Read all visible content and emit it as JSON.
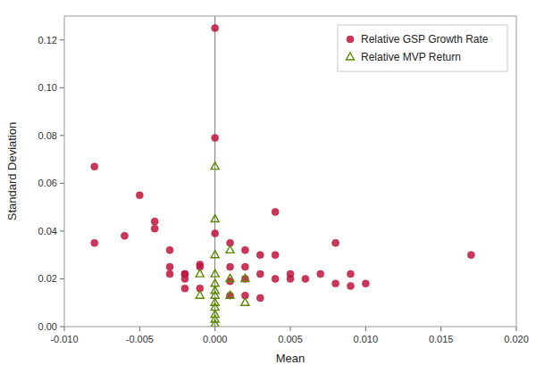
{
  "chart_data": {
    "type": "scatter",
    "xlabel": "Mean",
    "ylabel": "Standard Deviation",
    "series": [
      {
        "name": "Relative GSP Growth Rate",
        "color": "#C0143C",
        "marker": "circle",
        "x": [
          -0.008,
          -0.008,
          -0.006,
          -0.005,
          -0.004,
          -0.004,
          -0.003,
          -0.003,
          -0.003,
          -0.002,
          -0.002,
          -0.002,
          -0.002,
          -0.001,
          -0.001,
          -0.001,
          0.0,
          0.0,
          0.0,
          0.001,
          0.001,
          0.001,
          0.001,
          0.002,
          0.002,
          0.002,
          0.002,
          0.003,
          0.003,
          0.003,
          0.004,
          0.004,
          0.004,
          0.005,
          0.005,
          0.006,
          0.007,
          0.008,
          0.008,
          0.009,
          0.009,
          0.01,
          0.017
        ],
        "values": [
          0.067,
          0.035,
          0.038,
          0.055,
          0.041,
          0.044,
          0.032,
          0.025,
          0.022,
          0.022,
          0.022,
          0.02,
          0.016,
          0.026,
          0.025,
          0.016,
          0.125,
          0.079,
          0.039,
          0.035,
          0.025,
          0.019,
          0.013,
          0.032,
          0.025,
          0.02,
          0.013,
          0.03,
          0.022,
          0.012,
          0.048,
          0.03,
          0.02,
          0.022,
          0.02,
          0.02,
          0.022,
          0.035,
          0.018,
          0.022,
          0.017,
          0.018,
          0.03
        ]
      },
      {
        "name": "Relative MVP Return",
        "color": "#5C8A00",
        "marker": "triangle",
        "x": [
          0.0,
          0.0,
          0.0,
          0.0,
          0.0,
          0.0,
          0.0,
          0.0,
          0.0,
          0.0,
          0.0,
          0.0,
          -0.001,
          -0.001,
          0.001,
          0.001,
          0.001,
          0.002,
          0.002
        ],
        "values": [
          0.067,
          0.045,
          0.03,
          0.022,
          0.018,
          0.015,
          0.013,
          0.01,
          0.008,
          0.005,
          0.003,
          0.001,
          0.022,
          0.013,
          0.032,
          0.02,
          0.013,
          0.02,
          0.01
        ]
      }
    ],
    "vlines": [
      0
    ],
    "xlim": [
      -0.01,
      0.02
    ],
    "ylim": [
      0.0,
      0.13
    ],
    "xticks": [
      {
        "value": -0.01,
        "label": "-0.010"
      },
      {
        "value": -0.005,
        "label": "-0.005"
      },
      {
        "value": 0.0,
        "label": "0.000"
      },
      {
        "value": 0.005,
        "label": "0.005"
      },
      {
        "value": 0.01,
        "label": "0.010"
      },
      0.015,
      {
        "value": 0.02,
        "label": "0.020"
      }
    ],
    "yticks": [
      {
        "value": 0.0,
        "label": "0.00"
      },
      0.02,
      0.04,
      0.06,
      0.08,
      {
        "value": 0.1,
        "label": "0.10"
      },
      0.12
    ],
    "grid": false,
    "legend": "upper right"
  }
}
